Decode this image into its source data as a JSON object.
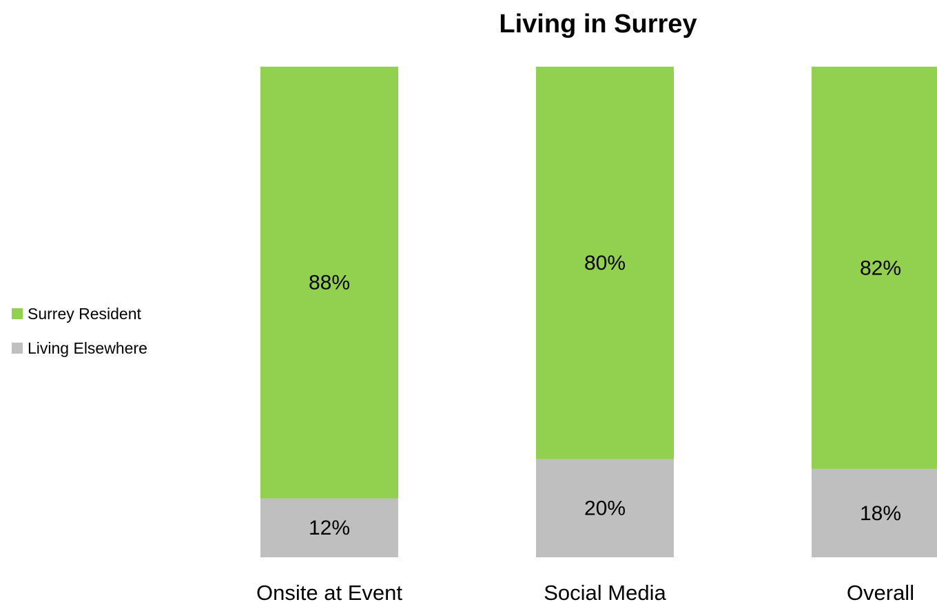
{
  "chart_data": {
    "type": "bar",
    "stacked": true,
    "percent_stacked": true,
    "title": "Living in Surrey",
    "categories": [
      "Onsite at Event",
      "Social Media",
      "Overall"
    ],
    "series": [
      {
        "name": "Living Elsewhere",
        "color": "#bfbfbf",
        "values": [
          12,
          20,
          18
        ],
        "labels": [
          "12%",
          "20%",
          "18%"
        ]
      },
      {
        "name": "Surrey Resident",
        "color": "#92d050",
        "values": [
          88,
          80,
          82
        ],
        "labels": [
          "88%",
          "80%",
          "82%"
        ]
      }
    ],
    "ylim": [
      0,
      100
    ],
    "grid": false,
    "legend_position": "left",
    "legend_order": [
      "Surrey Resident",
      "Living Elsewhere"
    ],
    "xlabel": "",
    "ylabel": ""
  }
}
